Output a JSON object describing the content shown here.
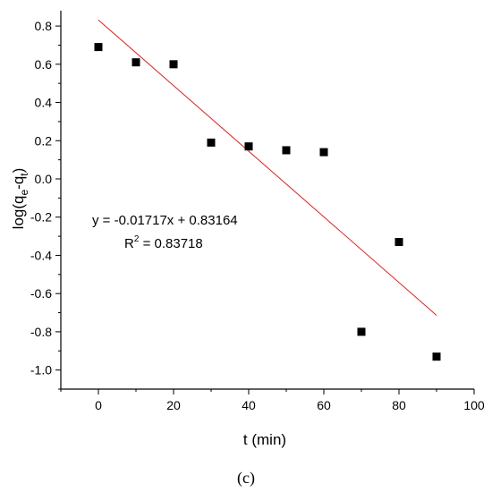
{
  "chart_data": {
    "type": "scatter",
    "title": "",
    "xlabel": "t (min)",
    "ylabel": {
      "base": "log(q",
      "sub1": "e",
      "mid": "-q",
      "sub2": "t",
      "end": ")"
    },
    "xlim": [
      -10,
      100
    ],
    "ylim": [
      -1.1,
      0.88
    ],
    "x_ticks": [
      0,
      20,
      40,
      60,
      80,
      100
    ],
    "y_ticks": [
      0.8,
      0.6,
      0.4,
      0.2,
      0.0,
      -0.2,
      -0.4,
      -0.6,
      -0.8,
      -1.0
    ],
    "x_tick_labels": [
      "0",
      "20",
      "40",
      "60",
      "80",
      "100"
    ],
    "y_tick_labels": [
      "0.8",
      "0.6",
      "0.4",
      "0.2",
      "0.0",
      "-0.2",
      "-0.4",
      "-0.6",
      "-0.8",
      "-1.0"
    ],
    "grid": false,
    "series": [
      {
        "marker": "square",
        "color": "#000000",
        "x": [
          0,
          10,
          20,
          30,
          40,
          50,
          60,
          70,
          80,
          90
        ],
        "y": [
          0.69,
          0.61,
          0.6,
          0.19,
          0.17,
          0.15,
          0.14,
          -0.8,
          -0.33,
          -0.93
        ]
      }
    ],
    "fit_line": {
      "color": "#e02020",
      "slope": -0.01717,
      "intercept": 0.83164,
      "x_range": [
        0,
        90
      ]
    },
    "annotations": {
      "equation": "y = -0.01717x + 0.83164",
      "r2_prefix": "R",
      "r2_sup": "2",
      "r2_value": " = 0.83718"
    },
    "panel_label": "(c)"
  }
}
